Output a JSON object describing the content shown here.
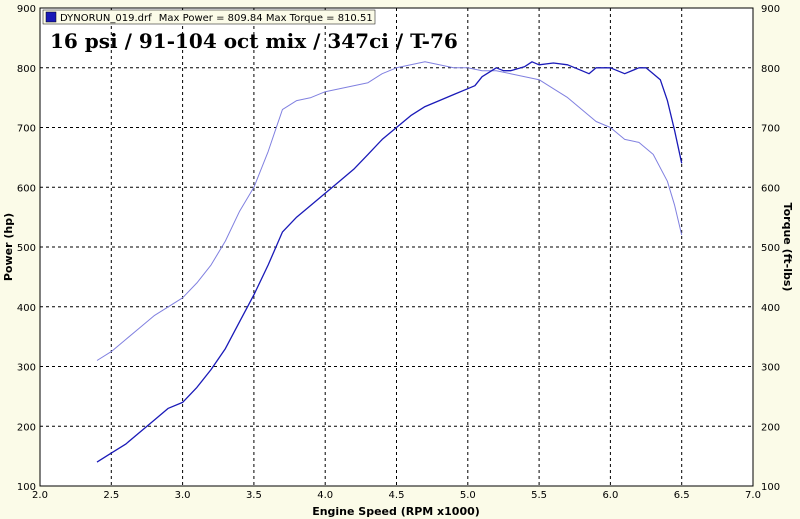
{
  "chart_data": {
    "type": "line",
    "legend": {
      "file": "DYNORUN_019.drf",
      "max_power_text": "Max Power = 809.84",
      "max_torque_text": "Max Torque = 810.51",
      "placement": "top-left"
    },
    "annotation": "16 psi / 91-104 oct mix / 347ci / T-76",
    "xlabel": "Engine Speed (RPM x1000)",
    "ylabel_left": "Power (hp)",
    "ylabel_right": "Torque (ft-lbs)",
    "xlim": [
      2.0,
      7.0
    ],
    "ylim": [
      100,
      900
    ],
    "xticks": [
      "2.0",
      "2.5",
      "3.0",
      "3.5",
      "4.0",
      "4.5",
      "5.0",
      "5.5",
      "6.0",
      "6.5",
      "7.0"
    ],
    "yticks_left": [
      "100",
      "200",
      "300",
      "400",
      "500",
      "600",
      "700",
      "800",
      "900"
    ],
    "yticks_right": [
      "100",
      "200",
      "300",
      "400",
      "500",
      "600",
      "700",
      "800",
      "900"
    ],
    "grid": true,
    "colors": {
      "power": "#1a1ab8",
      "torque": "#8080e0",
      "grid": "#000000",
      "plot_bg": "#ffffff",
      "page_bg": "#fbfbe8"
    },
    "series": [
      {
        "key": "power",
        "axis": "left",
        "x": [
          2.4,
          2.5,
          2.6,
          2.7,
          2.8,
          2.9,
          3.0,
          3.1,
          3.2,
          3.3,
          3.4,
          3.5,
          3.6,
          3.7,
          3.8,
          3.9,
          4.0,
          4.1,
          4.2,
          4.3,
          4.4,
          4.5,
          4.6,
          4.7,
          4.8,
          4.9,
          5.0,
          5.05,
          5.1,
          5.2,
          5.25,
          5.3,
          5.4,
          5.45,
          5.5,
          5.6,
          5.7,
          5.8,
          5.85,
          5.9,
          6.0,
          6.1,
          6.2,
          6.25,
          6.3,
          6.35,
          6.4,
          6.45,
          6.5
        ],
        "y": [
          140,
          155,
          170,
          190,
          210,
          230,
          240,
          265,
          295,
          330,
          375,
          420,
          470,
          525,
          550,
          570,
          590,
          610,
          630,
          655,
          680,
          700,
          720,
          735,
          745,
          755,
          765,
          770,
          785,
          800,
          795,
          795,
          802,
          810,
          805,
          808,
          805,
          795,
          790,
          800,
          800,
          790,
          800,
          800,
          790,
          780,
          745,
          695,
          640
        ]
      },
      {
        "key": "torque",
        "axis": "right",
        "x": [
          2.4,
          2.5,
          2.6,
          2.7,
          2.8,
          2.9,
          3.0,
          3.1,
          3.2,
          3.3,
          3.4,
          3.5,
          3.6,
          3.7,
          3.8,
          3.9,
          4.0,
          4.1,
          4.2,
          4.3,
          4.4,
          4.5,
          4.6,
          4.7,
          4.8,
          4.9,
          5.0,
          5.1,
          5.2,
          5.3,
          5.4,
          5.5,
          5.6,
          5.7,
          5.8,
          5.9,
          6.0,
          6.1,
          6.2,
          6.3,
          6.4,
          6.45,
          6.5
        ],
        "y": [
          310,
          325,
          345,
          365,
          385,
          400,
          415,
          440,
          470,
          510,
          560,
          600,
          660,
          730,
          745,
          750,
          760,
          765,
          770,
          775,
          790,
          800,
          805,
          810,
          805,
          800,
          800,
          795,
          795,
          790,
          785,
          780,
          765,
          750,
          730,
          710,
          700,
          680,
          675,
          655,
          610,
          570,
          520
        ]
      }
    ]
  }
}
